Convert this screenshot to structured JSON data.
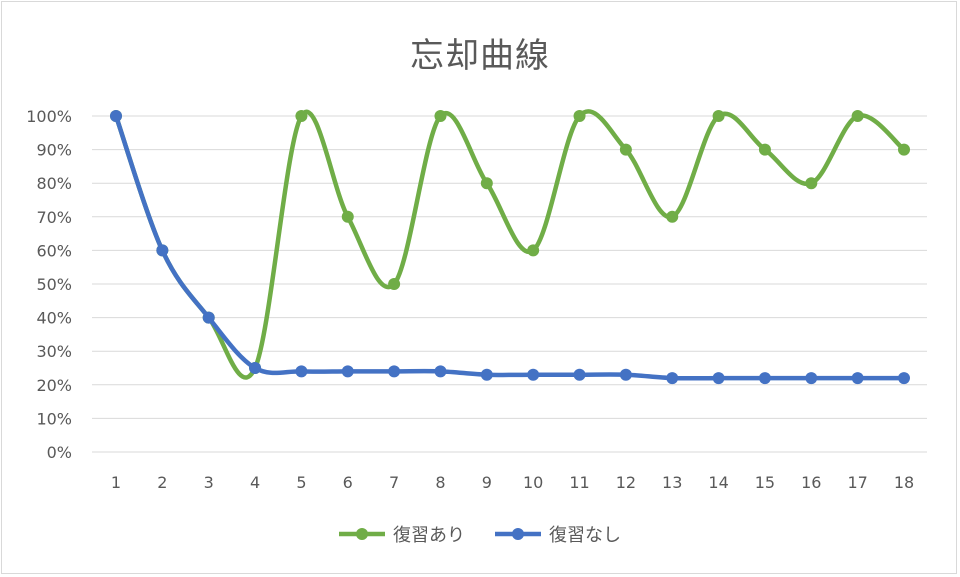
{
  "chart_data": {
    "type": "line",
    "title": "忘却曲線",
    "categories": [
      "1",
      "2",
      "3",
      "4",
      "5",
      "6",
      "7",
      "8",
      "9",
      "10",
      "11",
      "12",
      "13",
      "14",
      "15",
      "16",
      "17",
      "18"
    ],
    "ylim": [
      0,
      1
    ],
    "yticks": [
      "0%",
      "10%",
      "20%",
      "30%",
      "40%",
      "50%",
      "60%",
      "70%",
      "80%",
      "90%",
      "100%"
    ],
    "grid": true,
    "smooth": true,
    "legend_position": "bottom",
    "series": [
      {
        "name": "復習あり",
        "color": "#70ad47",
        "values": [
          1.0,
          0.6,
          0.4,
          0.25,
          1.0,
          0.7,
          0.5,
          1.0,
          0.8,
          0.6,
          1.0,
          0.9,
          0.7,
          1.0,
          0.9,
          0.8,
          1.0,
          0.9
        ]
      },
      {
        "name": "復習なし",
        "color": "#4472c4",
        "values": [
          1.0,
          0.6,
          0.4,
          0.25,
          0.24,
          0.24,
          0.24,
          0.24,
          0.23,
          0.23,
          0.23,
          0.23,
          0.22,
          0.22,
          0.22,
          0.22,
          0.22,
          0.22
        ]
      }
    ]
  }
}
